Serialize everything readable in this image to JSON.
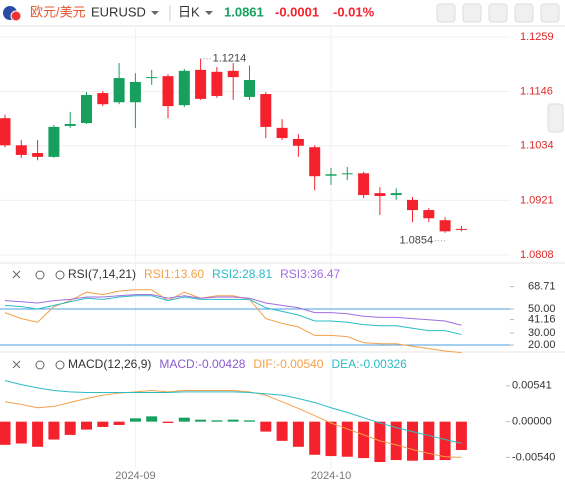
{
  "header": {
    "pair": "欧元/美元",
    "symbol": "EURUSD",
    "period": "日K",
    "price": "1.0861",
    "change": "-0.0001",
    "change_pct": "-0.01%"
  },
  "chart_data": [
    {
      "type": "candlestick",
      "up_color": "#17a05d",
      "down_color": "#f5222d",
      "categories": [
        null,
        null,
        null,
        null,
        null,
        null,
        null,
        null,
        "2024-09",
        null,
        null,
        null,
        null,
        null,
        null,
        null,
        null,
        null,
        null,
        null,
        "2024-10",
        null,
        null,
        null,
        null,
        null,
        null,
        null,
        null
      ],
      "open": [
        1.1091,
        1.1035,
        1.1019,
        1.1011,
        1.1075,
        1.1081,
        1.1143,
        1.1124,
        1.1124,
        1.1174,
        1.1178,
        1.1118,
        1.1191,
        1.1187,
        1.1189,
        1.1135,
        1.1141,
        1.1071,
        1.1048,
        1.1031,
        1.0972,
        1.0975,
        1.0977,
        1.0936,
        1.0932,
        1.0922,
        1.0901,
        1.088,
        1.0862
      ],
      "high": [
        1.1098,
        1.1046,
        1.1046,
        1.1077,
        1.1104,
        1.1145,
        1.1147,
        1.1205,
        1.1184,
        1.1191,
        1.1182,
        1.1193,
        1.1214,
        1.1197,
        1.1205,
        1.12,
        1.1145,
        1.1089,
        1.1058,
        1.1035,
        1.0988,
        1.099,
        1.098,
        1.0948,
        1.0946,
        1.0928,
        1.0905,
        1.0886,
        1.0868
      ],
      "low": [
        1.1031,
        1.1009,
        1.1004,
        1.1009,
        1.1071,
        1.1079,
        1.1116,
        1.112,
        1.1071,
        1.116,
        1.1091,
        1.1114,
        1.1129,
        1.1133,
        1.1129,
        1.1129,
        1.105,
        1.1046,
        1.1011,
        1.0942,
        1.0953,
        1.0963,
        1.0926,
        1.0891,
        1.0922,
        1.0876,
        1.0876,
        1.0854,
        1.0857
      ],
      "close": [
        1.1035,
        1.1015,
        1.1011,
        1.1073,
        1.1079,
        1.1139,
        1.112,
        1.1174,
        1.1166,
        1.1176,
        1.1116,
        1.1189,
        1.1131,
        1.1137,
        1.1176,
        1.117,
        1.1073,
        1.105,
        1.1034,
        1.0971,
        1.0975,
        1.0977,
        1.0932,
        1.093,
        1.0936,
        1.0901,
        1.0884,
        1.0857,
        1.0861
      ],
      "ylim": [
        1.0808,
        1.1259
      ],
      "yticks": [
        1.1259,
        1.1146,
        1.1034,
        1.0921,
        1.0808
      ],
      "grid": true,
      "annotations": [
        1.1214,
        1.0854
      ]
    },
    {
      "type": "line",
      "title": "RSI(7,14,21)",
      "ylim": [
        10,
        70
      ],
      "yticks": [
        68.71,
        {
          "value": 50,
          "label": "50.00"
        },
        41.16,
        {
          "value": 30,
          "label": "30.00"
        },
        {
          "value": 20,
          "label": "20.00"
        }
      ],
      "hlines": [
        50,
        20
      ],
      "hline_color": "#4a9fe0",
      "series": [
        {
          "name": "RSI1:13.60",
          "color": "#f5a04a",
          "values": [
            47,
            42,
            39,
            52,
            57,
            64,
            62,
            65,
            66,
            66,
            57,
            64,
            59,
            61,
            61,
            58,
            42,
            38,
            35,
            28,
            28,
            27,
            22,
            21,
            21,
            19,
            17,
            15,
            13.6
          ]
        },
        {
          "name": "RSI2:28.81",
          "color": "#2bbcc6",
          "values": [
            53,
            52,
            50,
            53,
            56,
            59,
            58,
            60,
            61,
            61,
            57,
            60,
            58,
            58,
            58,
            58,
            51,
            48,
            45,
            40,
            40,
            39,
            37,
            36,
            36,
            34,
            32,
            32,
            28.81
          ]
        },
        {
          "name": "RSI3:36.47",
          "color": "#a06de0",
          "values": [
            57,
            56,
            55,
            57,
            58,
            60,
            60,
            61,
            62,
            62,
            59,
            61,
            59,
            60,
            60,
            59,
            55,
            53,
            51,
            47,
            47,
            46,
            44,
            43,
            43,
            42,
            41,
            40,
            36.47
          ]
        }
      ]
    },
    {
      "type": "combo",
      "title": "MACD(12,26,9)",
      "ylim": [
        -0.007,
        0.0075
      ],
      "yticks": [
        0.00541,
        {
          "value": 0,
          "label": "0.00000"
        },
        {
          "value": -0.0054,
          "label": "-0.00540"
        }
      ],
      "up_color": "#17a05d",
      "down_color": "#f5222d",
      "series": [
        {
          "name": "MACD:-0.00428",
          "type": "bar",
          "color": "#8a5cd0",
          "values": [
            -0.0035,
            -0.0033,
            -0.0038,
            -0.0027,
            -0.002,
            -0.0012,
            -0.0008,
            -0.0005,
            0.0005,
            0.0008,
            -0.0002,
            0.0006,
            0.0003,
            0.0002,
            0.0003,
            0.0002,
            -0.0015,
            -0.0029,
            -0.0038,
            -0.005,
            -0.0052,
            -0.0053,
            -0.0055,
            -0.0061,
            -0.0058,
            -0.0059,
            -0.0058,
            -0.0058,
            -0.00428
          ]
        },
        {
          "name": "DIF:-0.00540",
          "type": "line",
          "color": "#f5a04a",
          "values": [
            0.003,
            0.0026,
            0.0021,
            0.0023,
            0.0029,
            0.0035,
            0.004,
            0.0043,
            0.0045,
            0.0047,
            0.0045,
            0.0047,
            0.0047,
            0.0047,
            0.0047,
            0.0045,
            0.004,
            0.003,
            0.002,
            0.0009,
            -0.0002,
            -0.0011,
            -0.002,
            -0.0029,
            -0.0035,
            -0.0042,
            -0.0048,
            -0.0053,
            -0.0054
          ]
        },
        {
          "name": "DEA:-0.00326",
          "type": "line",
          "color": "#2bbcc6",
          "values": [
            0.0062,
            0.0056,
            0.0051,
            0.0047,
            0.0045,
            0.0044,
            0.0044,
            0.0044,
            0.0044,
            0.0044,
            0.0044,
            0.0045,
            0.0045,
            0.0045,
            0.0045,
            0.0044,
            0.0042,
            0.004,
            0.0035,
            0.0029,
            0.0021,
            0.0014,
            0.0006,
            -0.0002,
            -0.0009,
            -0.0015,
            -0.0021,
            -0.0027,
            -0.00326
          ]
        }
      ]
    }
  ]
}
